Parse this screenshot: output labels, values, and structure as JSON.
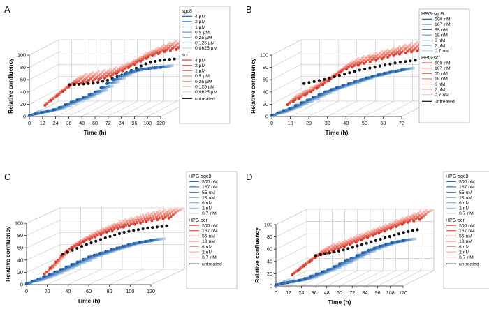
{
  "colors": {
    "blue_dark": "#1f5fa8",
    "blue_light": "#b9d4ee",
    "red_dark": "#d93a2c",
    "red_light": "#f9c9c2",
    "untreated": "#111111",
    "grid": "#b8b8b8"
  },
  "chart_data": [
    {
      "panel": "A",
      "type": "scatter",
      "projection": "3d",
      "title": "",
      "xlabel": "Time (h)",
      "ylabel": "Relative confluency",
      "xlim": [
        0,
        120
      ],
      "ylim": [
        0,
        100
      ],
      "xticks": [
        0,
        12,
        24,
        36,
        48,
        60,
        72,
        84,
        96,
        108,
        120
      ],
      "yticks": [
        0,
        20,
        40,
        60,
        80,
        100
      ],
      "legend_position": "right",
      "legend": {
        "groups": [
          {
            "title": "sgc8",
            "entries": [
              "4 µM",
              "2 µM",
              "1 µM",
              "0.5 µM",
              "0.25 µM",
              "0.125 µM",
              "0.0625 µM"
            ]
          },
          {
            "title": "scr",
            "entries": [
              "4 µM",
              "2 µM",
              "1 µM",
              "0.5 µM",
              "0.25 µM",
              "0.125 µM",
              "0.0625 µM"
            ]
          }
        ],
        "untreated": "untreated"
      },
      "series_summary": {
        "blue_sgc8": {
          "t": [
            0,
            24,
            36,
            48,
            60,
            72,
            84,
            96,
            108,
            120
          ],
          "v": [
            2,
            12,
            22,
            30,
            40,
            55,
            68,
            75,
            78,
            80
          ]
        },
        "red_scr": {
          "t": [
            0,
            24,
            36,
            48,
            60,
            72,
            84,
            96,
            108,
            120
          ],
          "v": [
            5,
            38,
            42,
            46,
            52,
            62,
            74,
            84,
            92,
            96
          ]
        },
        "untreated": {
          "t": [
            24,
            36,
            48,
            60,
            72,
            84,
            96,
            108,
            120
          ],
          "v": [
            40,
            41,
            43,
            48,
            56,
            66,
            76,
            80,
            82
          ]
        }
      }
    },
    {
      "panel": "B",
      "type": "scatter",
      "projection": "3d",
      "title": "",
      "xlabel": "Time (h)",
      "ylabel": "Relative confluency",
      "xlim": [
        0,
        70
      ],
      "ylim": [
        0,
        100
      ],
      "xticks": [
        0,
        10,
        20,
        30,
        40,
        50,
        60,
        70
      ],
      "yticks": [
        0,
        20,
        40,
        60,
        80,
        100
      ],
      "legend_position": "right",
      "legend": {
        "groups": [
          {
            "title": "HPG-sgc8",
            "entries": [
              "500 nM",
              "167 nM",
              "55 nM",
              "18 nM",
              "6 nM",
              "2 nM",
              "0.7 nM"
            ]
          },
          {
            "title": "HPG-scr",
            "entries": [
              "500 nM",
              "167 nM",
              "55 nM",
              "18 nM",
              "6 nM",
              "2 nM",
              "0.7 nM"
            ]
          }
        ],
        "untreated": "untreated"
      },
      "series_summary": {
        "blue_sgc8": {
          "t": [
            0,
            10,
            20,
            30,
            40,
            50,
            60,
            70
          ],
          "v": [
            2,
            14,
            28,
            42,
            52,
            62,
            70,
            76
          ]
        },
        "red_scr": {
          "t": [
            0,
            10,
            20,
            30,
            40,
            50,
            60,
            70
          ],
          "v": [
            6,
            22,
            40,
            62,
            72,
            80,
            88,
            94
          ]
        },
        "untreated": {
          "t": [
            10,
            20,
            30,
            40,
            50,
            60,
            70
          ],
          "v": [
            42,
            48,
            56,
            64,
            70,
            76,
            80
          ]
        }
      }
    },
    {
      "panel": "C",
      "type": "scatter",
      "projection": "3d",
      "title": "",
      "xlabel": "Time (h)",
      "ylabel": "Relative confluency",
      "xlim": [
        0,
        120
      ],
      "ylim": [
        0,
        100
      ],
      "xticks": [
        0,
        20,
        40,
        60,
        80,
        100,
        120
      ],
      "yticks": [
        0,
        20,
        40,
        60,
        80,
        100
      ],
      "legend_position": "right",
      "legend": {
        "groups": [
          {
            "title": "HPG-sgc8",
            "entries": [
              "500 nM",
              "167 nM",
              "55 nM",
              "18 nM",
              "6 nM",
              "2 nM",
              "0.7 nM"
            ]
          },
          {
            "title": "HPG-scr",
            "entries": [
              "500 nM",
              "167 nM",
              "55 nM",
              "18 nM",
              "6 nM",
              "2 nM",
              "0.7 nM"
            ]
          }
        ],
        "untreated": "untreated"
      },
      "series_summary": {
        "blue_sgc8": {
          "t": [
            0,
            20,
            40,
            60,
            80,
            100,
            120
          ],
          "v": [
            2,
            15,
            30,
            45,
            56,
            66,
            72
          ]
        },
        "red_scr": {
          "t": [
            0,
            20,
            40,
            60,
            80,
            100,
            120
          ],
          "v": [
            4,
            40,
            58,
            72,
            82,
            90,
            95
          ]
        },
        "untreated": {
          "t": [
            20,
            40,
            60,
            80,
            100,
            120
          ],
          "v": [
            38,
            52,
            64,
            74,
            80,
            84
          ]
        }
      }
    },
    {
      "panel": "D",
      "type": "scatter",
      "projection": "3d",
      "title": "",
      "xlabel": "Time (h)",
      "ylabel": "Relative confluency",
      "xlim": [
        0,
        120
      ],
      "ylim": [
        0,
        100
      ],
      "xticks": [
        0,
        12,
        24,
        36,
        48,
        60,
        72,
        84,
        96,
        108,
        120
      ],
      "yticks": [
        0,
        20,
        40,
        60,
        80,
        100
      ],
      "legend_position": "right",
      "legend": {
        "groups": [
          {
            "title": "HPG-sgc8",
            "entries": [
              "500 nM",
              "167 nM",
              "55 nM",
              "18 nM",
              "6 nM",
              "2 nM",
              "0.7 nM"
            ]
          },
          {
            "title": "HPG-scr",
            "entries": [
              "500 nM",
              "167 nM",
              "55 nM",
              "18 nM",
              "6 nM",
              "2 nM",
              "0.7 nM"
            ]
          }
        ],
        "untreated": "untreated"
      },
      "series_summary": {
        "blue_sgc8": {
          "t": [
            0,
            24,
            36,
            48,
            60,
            72,
            84,
            96,
            108,
            120
          ],
          "v": [
            2,
            10,
            18,
            26,
            36,
            46,
            56,
            64,
            70,
            74
          ]
        },
        "red_scr": {
          "t": [
            0,
            24,
            36,
            48,
            60,
            72,
            84,
            96,
            108,
            120
          ],
          "v": [
            5,
            36,
            42,
            50,
            58,
            66,
            74,
            82,
            90,
            95
          ]
        },
        "untreated": {
          "t": [
            24,
            36,
            48,
            60,
            72,
            84,
            96,
            108,
            120
          ],
          "v": [
            38,
            42,
            46,
            52,
            58,
            64,
            70,
            76,
            80
          ]
        }
      }
    }
  ]
}
